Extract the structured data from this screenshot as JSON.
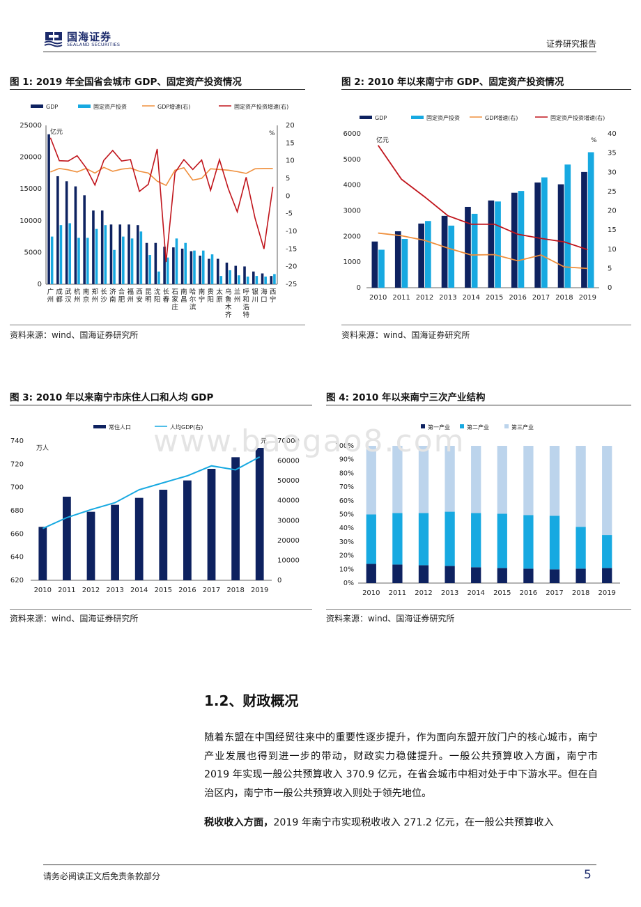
{
  "header": {
    "logo_text": "国海证券",
    "logo_sub": "SEALAND SECURITIES",
    "right_text": "证券研究报告"
  },
  "watermark": "www.baogao8.com",
  "fig1": {
    "title": "图 1:  2019 年全国省会城市 GDP、固定资产投资情况",
    "source": "资料来源：wind、国海证券研究所"
  },
  "fig2": {
    "title": "图 2:  2010 年以来南宁市 GDP、固定资产投资情况",
    "source": "资料来源：wind、国海证券研究所"
  },
  "fig3": {
    "title": "图 3:  2010 年以来南宁市床住人口和人均 GDP",
    "source": "资料来源：wind、国海证券研究所"
  },
  "fig4": {
    "title": "图 4:  2010 年以来南宁三次产业结构",
    "source": "资料来源：wind、国海证券研究所"
  },
  "section": {
    "title": "1.2、财政概况",
    "para1": "随着东盟在中国经贸往来中的重要性逐步提升，作为面向东盟开放门户的核心城市，南宁产业发展也得到进一步的带动，财政实力稳健提升。一般公共预算收入方面，南宁市 2019 年实现一般公共预算收入 370.9 亿元，在省会城市中相对处于中下游水平。但在自治区内，南宁市一般公共预算收入则处于领先地位。",
    "para2_bold": "税收收入方面，",
    "para2": "2019 年南宁市实现税收收入 271.2 亿元，在一般公共预算收入"
  },
  "footer": {
    "disclaimer": "请务必阅读正文后免责条款部分",
    "page": "5"
  },
  "colors": {
    "navy": "#0e2260",
    "cyan": "#17a9e1",
    "orange": "#ef8f3c",
    "red": "#c0141b",
    "light": "#bcd4ec"
  },
  "chart_data": [
    {
      "type": "bar",
      "title": "2019年全国省会城市GDP、固定资产投资情况",
      "legend": [
        "GDP",
        "固定资产投资",
        "GDP增速(右)",
        "固定资产投资增速(右)"
      ],
      "unit_left": "亿元",
      "unit_right": "%",
      "categories": [
        "广州",
        "成都",
        "武汉",
        "杭州",
        "南京",
        "郑州",
        "长沙",
        "济南",
        "合肥",
        "福州",
        "西安",
        "昆明",
        "沈阳",
        "长春",
        "石家庄",
        "南昌",
        "哈尔滨",
        "南宁",
        "贵阳",
        "太原",
        "乌鲁木齐",
        "兰州",
        "呼和浩特",
        "银川",
        "海口",
        "西宁"
      ],
      "ylim": [
        0,
        25000
      ],
      "yticks": [
        0,
        5000,
        10000,
        15000,
        20000,
        25000
      ],
      "y2lim": [
        -25,
        20
      ],
      "y2ticks": [
        -25,
        -20,
        -15,
        -10,
        -5,
        0,
        5,
        10,
        15,
        20
      ],
      "series": [
        {
          "name": "GDP",
          "values": [
            23600,
            17000,
            16200,
            15400,
            14000,
            11600,
            11600,
            9400,
            9400,
            9400,
            9300,
            6500,
            6500,
            5900,
            5800,
            5600,
            5200,
            4500,
            4000,
            4000,
            3400,
            2900,
            2800,
            2000,
            1700,
            1300
          ]
        },
        {
          "name": "固定资产投资",
          "values": [
            7500,
            9300,
            9600,
            7300,
            7300,
            8700,
            9300,
            5400,
            7500,
            7200,
            8300,
            4600,
            2000,
            4200,
            7200,
            6500,
            5300,
            5300,
            4700,
            1300,
            2200,
            1400,
            1200,
            1300,
            1200,
            1600
          ]
        },
        {
          "name": "GDP增速(右)",
          "values": [
            6.8,
            7.8,
            7.4,
            6.8,
            7.8,
            6.5,
            8.1,
            7.0,
            7.6,
            7.9,
            7.0,
            6.5,
            4.2,
            3.0,
            7.3,
            8.0,
            4.5,
            5.0,
            7.7,
            7.5,
            7.3,
            6.9,
            6.4,
            7.7,
            7.8,
            7.8
          ]
        },
        {
          "name": "固定资产投资增速(右)",
          "values": [
            16.5,
            10.0,
            9.9,
            11.4,
            8.0,
            3.1,
            10.1,
            12.9,
            9.9,
            10.3,
            1.3,
            3.3,
            13.3,
            -18.7,
            6.6,
            10.3,
            7.5,
            10.2,
            1.6,
            10.3,
            2.0,
            -4.5,
            5.3,
            -6.3,
            -15.0,
            2.6
          ]
        }
      ]
    },
    {
      "type": "bar",
      "title": "2010年以来南宁市GDP、固定资产投资情况",
      "legend": [
        "GDP",
        "固定资产投资",
        "GDP增速(右)",
        "固定资产投资增速(右)"
      ],
      "unit_left": "亿元",
      "unit_right": "%",
      "categories": [
        "2010",
        "2011",
        "2012",
        "2013",
        "2014",
        "2015",
        "2016",
        "2017",
        "2018",
        "2019"
      ],
      "ylim": [
        0,
        6000
      ],
      "yticks": [
        0,
        1000,
        2000,
        3000,
        4000,
        5000,
        6000
      ],
      "y2lim": [
        0,
        40
      ],
      "y2ticks": [
        0,
        5,
        10,
        15,
        20,
        25,
        30,
        35,
        40
      ],
      "series": [
        {
          "name": "GDP",
          "values": [
            1800,
            2200,
            2500,
            2800,
            3150,
            3400,
            3700,
            4100,
            4030,
            4510
          ]
        },
        {
          "name": "固定资产投资",
          "values": [
            1480,
            1900,
            2600,
            2420,
            2880,
            3360,
            3770,
            4300,
            4800,
            5280
          ]
        },
        {
          "name": "GDP增速(右)",
          "values": [
            14.2,
            13.5,
            12.3,
            10.3,
            8.5,
            8.6,
            7.0,
            8.5,
            5.4,
            5.0
          ]
        },
        {
          "name": "固定资产投资增速(右)",
          "values": [
            37.0,
            28.2,
            23.6,
            18.7,
            16.5,
            16.5,
            13.9,
            12.8,
            11.9,
            9.9
          ]
        }
      ]
    },
    {
      "type": "bar",
      "title": "2010年以来南宁市床住人口和人均GDP",
      "legend": [
        "常住人口",
        "人均GDP(右)"
      ],
      "unit_left": "万人",
      "unit_right": "元",
      "categories": [
        "2010",
        "2011",
        "2012",
        "2013",
        "2014",
        "2015",
        "2016",
        "2017",
        "2018",
        "2019"
      ],
      "ylim": [
        620,
        740
      ],
      "yticks": [
        620,
        640,
        660,
        680,
        700,
        720,
        740
      ],
      "y2lim": [
        0,
        70000
      ],
      "y2ticks": [
        0,
        10000,
        20000,
        30000,
        40000,
        50000,
        60000,
        70000
      ],
      "series": [
        {
          "name": "常住人口",
          "values": [
            666,
            692,
            679,
            685,
            691,
            698,
            706,
            716,
            726,
            734
          ]
        },
        {
          "name": "人均GDP(右)",
          "values": [
            26000,
            31500,
            35500,
            39000,
            45500,
            49000,
            52500,
            57500,
            55500,
            62000
          ]
        }
      ]
    },
    {
      "type": "bar",
      "title": "2010年以来南宁三次产业结构",
      "legend": [
        "第一产业",
        "第二产业",
        "第三产业"
      ],
      "categories": [
        "2010",
        "2011",
        "2012",
        "2013",
        "2014",
        "2015",
        "2016",
        "2017",
        "2018",
        "2019"
      ],
      "ylim": [
        0,
        100
      ],
      "yticks": [
        0,
        10,
        20,
        30,
        40,
        50,
        60,
        70,
        80,
        90,
        100
      ],
      "series": [
        {
          "name": "第一产业",
          "values": [
            14,
            13.5,
            13,
            12.5,
            11.5,
            11,
            10.5,
            10,
            10.5,
            11
          ]
        },
        {
          "name": "第二产业",
          "values": [
            36,
            37.5,
            38,
            39.5,
            39.5,
            39.5,
            39,
            39,
            30.5,
            24
          ]
        },
        {
          "name": "第三产业",
          "values": [
            50,
            49,
            49,
            48,
            49,
            49.5,
            50.5,
            51,
            59,
            65
          ]
        }
      ]
    }
  ]
}
